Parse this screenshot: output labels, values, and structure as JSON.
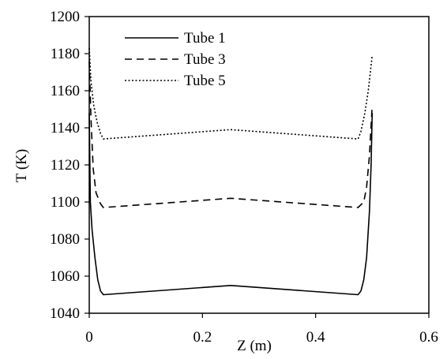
{
  "chart_data": {
    "type": "line",
    "title": "",
    "xlabel": "Z (m)",
    "ylabel": "T (K)",
    "xlim": [
      0,
      0.6
    ],
    "ylim": [
      1040,
      1200
    ],
    "x_ticks": [
      "0",
      "0.2",
      "0.4",
      "0.6"
    ],
    "y_ticks": [
      "1040",
      "1060",
      "1080",
      "1100",
      "1120",
      "1140",
      "1160",
      "1180",
      "1200"
    ],
    "grid": false,
    "legend_position": "top-left",
    "series": [
      {
        "name": "Tube 1",
        "line_style": "solid",
        "x": [
          0,
          0.002,
          0.005,
          0.01,
          0.015,
          0.02,
          0.025,
          0.25,
          0.475,
          0.48,
          0.485,
          0.49,
          0.495,
          0.498,
          0.5
        ],
        "y": [
          1148,
          1100,
          1085,
          1070,
          1058,
          1052,
          1050,
          1055,
          1050,
          1052,
          1058,
          1070,
          1095,
          1120,
          1148
        ]
      },
      {
        "name": "Tube 3",
        "line_style": "dashed",
        "x": [
          0,
          0.003,
          0.007,
          0.012,
          0.02,
          0.025,
          0.25,
          0.475,
          0.485,
          0.49,
          0.495,
          0.5
        ],
        "y": [
          1176,
          1145,
          1118,
          1105,
          1099,
          1097,
          1102,
          1097,
          1100,
          1108,
          1125,
          1152
        ]
      },
      {
        "name": "Tube 5",
        "line_style": "dotted",
        "x": [
          0,
          0.003,
          0.008,
          0.014,
          0.02,
          0.025,
          0.25,
          0.475,
          0.48,
          0.487,
          0.493,
          0.5
        ],
        "y": [
          1183,
          1165,
          1152,
          1143,
          1137,
          1134,
          1139,
          1134,
          1138,
          1148,
          1160,
          1179
        ]
      }
    ]
  }
}
